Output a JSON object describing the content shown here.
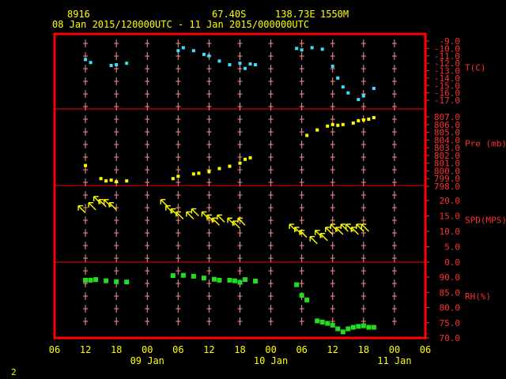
{
  "header": {
    "station_id": "8916",
    "lat": "67.40S",
    "lon": "138.73E",
    "elevation": "1550M",
    "period": "08 Jan 2015/120000UTC - 11 Jan 2015/000000UTC"
  },
  "footer": {
    "page_number": "2"
  },
  "colors": {
    "frame": "#ff0000",
    "grid_marks": "#ff9090",
    "header_text": "#ffff00",
    "axis_text": "#ffff00",
    "right_labels": "#ff3030",
    "temperature": "#38e0ff",
    "pressure": "#ffff00",
    "wind": "#ffff00",
    "humidity": "#22dd22"
  },
  "chart_data": {
    "type": "scatter",
    "x": {
      "tick_labels": [
        "06",
        "12",
        "18",
        "00",
        "06",
        "12",
        "18",
        "00",
        "06",
        "12",
        "18",
        "00",
        "06"
      ],
      "day_labels": [
        "09 Jan",
        "10 Jan",
        "11 Jan"
      ],
      "range_hours_utc": [
        "2015-01-08T06:00",
        "2015-01-11T06:00"
      ]
    },
    "panels": [
      {
        "name": "T(C)",
        "ticks": [
          "-9.0",
          "-10.0",
          "-11.0",
          "-12.0",
          "-13.0",
          "-14.0",
          "-15.0",
          "-16.0",
          "-17.0"
        ],
        "ylim": [
          -17,
          -9
        ],
        "points": [
          {
            "t": "2015-01-08T12:00",
            "v": -11.5
          },
          {
            "t": "2015-01-08T13:00",
            "v": -11.9
          },
          {
            "t": "2015-01-08T17:00",
            "v": -12.3
          },
          {
            "t": "2015-01-08T18:00",
            "v": -12.2
          },
          {
            "t": "2015-01-08T20:00",
            "v": -12.0
          },
          {
            "t": "2015-01-09T06:00",
            "v": -10.3
          },
          {
            "t": "2015-01-09T07:00",
            "v": -9.9
          },
          {
            "t": "2015-01-09T09:00",
            "v": -10.3
          },
          {
            "t": "2015-01-09T11:00",
            "v": -10.8
          },
          {
            "t": "2015-01-09T12:00",
            "v": -11.0
          },
          {
            "t": "2015-01-09T14:00",
            "v": -11.7
          },
          {
            "t": "2015-01-09T16:00",
            "v": -12.2
          },
          {
            "t": "2015-01-09T18:00",
            "v": -12.0
          },
          {
            "t": "2015-01-09T19:00",
            "v": -12.7
          },
          {
            "t": "2015-01-09T20:00",
            "v": -12.1
          },
          {
            "t": "2015-01-09T21:00",
            "v": -12.2
          },
          {
            "t": "2015-01-10T05:00",
            "v": -10.0
          },
          {
            "t": "2015-01-10T06:00",
            "v": -10.2
          },
          {
            "t": "2015-01-10T08:00",
            "v": -9.9
          },
          {
            "t": "2015-01-10T10:00",
            "v": -10.1
          },
          {
            "t": "2015-01-10T12:00",
            "v": -12.4
          },
          {
            "t": "2015-01-10T13:00",
            "v": -14.0
          },
          {
            "t": "2015-01-10T14:00",
            "v": -15.2
          },
          {
            "t": "2015-01-10T15:00",
            "v": -16.0
          },
          {
            "t": "2015-01-10T17:00",
            "v": -16.9
          },
          {
            "t": "2015-01-10T18:00",
            "v": -16.4
          },
          {
            "t": "2015-01-10T20:00",
            "v": -15.4
          }
        ]
      },
      {
        "name": "Pre (mb)",
        "ticks": [
          "807.0",
          "806.0",
          "805.0",
          "804.0",
          "803.0",
          "802.0",
          "801.0",
          "800.0",
          "799.0",
          "798.0"
        ],
        "ylim": [
          798,
          807.5
        ],
        "points": [
          {
            "t": "2015-01-08T12:00",
            "v": 800.7
          },
          {
            "t": "2015-01-08T15:00",
            "v": 799.0
          },
          {
            "t": "2015-01-08T16:00",
            "v": 798.7
          },
          {
            "t": "2015-01-08T17:00",
            "v": 798.8
          },
          {
            "t": "2015-01-08T18:00",
            "v": 798.6
          },
          {
            "t": "2015-01-08T20:00",
            "v": 798.7
          },
          {
            "t": "2015-01-09T05:00",
            "v": 799.0
          },
          {
            "t": "2015-01-09T06:00",
            "v": 799.3
          },
          {
            "t": "2015-01-09T09:00",
            "v": 799.6
          },
          {
            "t": "2015-01-09T10:00",
            "v": 799.7
          },
          {
            "t": "2015-01-09T12:00",
            "v": 799.9
          },
          {
            "t": "2015-01-09T14:00",
            "v": 800.3
          },
          {
            "t": "2015-01-09T16:00",
            "v": 800.6
          },
          {
            "t": "2015-01-09T18:00",
            "v": 801.0
          },
          {
            "t": "2015-01-09T19:00",
            "v": 801.5
          },
          {
            "t": "2015-01-09T20:00",
            "v": 801.7
          },
          {
            "t": "2015-01-10T07:00",
            "v": 804.6
          },
          {
            "t": "2015-01-10T09:00",
            "v": 805.3
          },
          {
            "t": "2015-01-10T11:00",
            "v": 805.8
          },
          {
            "t": "2015-01-10T12:00",
            "v": 806.0
          },
          {
            "t": "2015-01-10T13:00",
            "v": 805.9
          },
          {
            "t": "2015-01-10T14:00",
            "v": 806.0
          },
          {
            "t": "2015-01-10T16:00",
            "v": 806.2
          },
          {
            "t": "2015-01-10T17:00",
            "v": 806.5
          },
          {
            "t": "2015-01-10T18:00",
            "v": 806.6
          },
          {
            "t": "2015-01-10T19:00",
            "v": 806.7
          },
          {
            "t": "2015-01-10T20:00",
            "v": 806.9
          }
        ]
      },
      {
        "name": "SPD(MPS)",
        "ticks": [
          "20.0",
          "15.0",
          "10.0",
          "5.0",
          "0.0"
        ],
        "ylim": [
          0,
          20
        ],
        "glyph": "arrow",
        "points": [
          {
            "t": "2015-01-08T12:00",
            "v": 16
          },
          {
            "t": "2015-01-08T14:00",
            "v": 17
          },
          {
            "t": "2015-01-08T15:00",
            "v": 19
          },
          {
            "t": "2015-01-08T16:00",
            "v": 18
          },
          {
            "t": "2015-01-08T17:00",
            "v": 18
          },
          {
            "t": "2015-01-08T18:00",
            "v": 17
          },
          {
            "t": "2015-01-09T04:00",
            "v": 18
          },
          {
            "t": "2015-01-09T05:00",
            "v": 16
          },
          {
            "t": "2015-01-09T06:00",
            "v": 15
          },
          {
            "t": "2015-01-09T07:00",
            "v": 14
          },
          {
            "t": "2015-01-09T09:00",
            "v": 14
          },
          {
            "t": "2015-01-09T10:00",
            "v": 15
          },
          {
            "t": "2015-01-09T12:00",
            "v": 14
          },
          {
            "t": "2015-01-09T13:00",
            "v": 13
          },
          {
            "t": "2015-01-09T14:00",
            "v": 12
          },
          {
            "t": "2015-01-09T15:00",
            "v": 13
          },
          {
            "t": "2015-01-09T17:00",
            "v": 12
          },
          {
            "t": "2015-01-09T18:00",
            "v": 11
          },
          {
            "t": "2015-01-09T19:00",
            "v": 12
          },
          {
            "t": "2015-01-10T05:00",
            "v": 10
          },
          {
            "t": "2015-01-10T06:00",
            "v": 9
          },
          {
            "t": "2015-01-10T07:00",
            "v": 8
          },
          {
            "t": "2015-01-10T09:00",
            "v": 6
          },
          {
            "t": "2015-01-10T10:00",
            "v": 8
          },
          {
            "t": "2015-01-10T11:00",
            "v": 7
          },
          {
            "t": "2015-01-10T12:00",
            "v": 9
          },
          {
            "t": "2015-01-10T13:00",
            "v": 10
          },
          {
            "t": "2015-01-10T14:00",
            "v": 9
          },
          {
            "t": "2015-01-10T15:00",
            "v": 10
          },
          {
            "t": "2015-01-10T16:00",
            "v": 10
          },
          {
            "t": "2015-01-10T17:00",
            "v": 9
          },
          {
            "t": "2015-01-10T18:00",
            "v": 10
          },
          {
            "t": "2015-01-10T19:00",
            "v": 10
          }
        ]
      },
      {
        "name": "RH(%)",
        "ticks": [
          "90.0",
          "85.0",
          "80.0",
          "75.0",
          "70.0"
        ],
        "ylim": [
          70,
          94
        ],
        "points": [
          {
            "t": "2015-01-08T12:00",
            "v": 89.0
          },
          {
            "t": "2015-01-08T13:00",
            "v": 89.0
          },
          {
            "t": "2015-01-08T14:00",
            "v": 89.2
          },
          {
            "t": "2015-01-08T16:00",
            "v": 88.8
          },
          {
            "t": "2015-01-08T18:00",
            "v": 88.5
          },
          {
            "t": "2015-01-08T20:00",
            "v": 88.4
          },
          {
            "t": "2015-01-09T05:00",
            "v": 90.5
          },
          {
            "t": "2015-01-09T07:00",
            "v": 90.6
          },
          {
            "t": "2015-01-09T09:00",
            "v": 90.3
          },
          {
            "t": "2015-01-09T11:00",
            "v": 89.7
          },
          {
            "t": "2015-01-09T13:00",
            "v": 89.3
          },
          {
            "t": "2015-01-09T14:00",
            "v": 89.0
          },
          {
            "t": "2015-01-09T16:00",
            "v": 89.0
          },
          {
            "t": "2015-01-09T17:00",
            "v": 88.8
          },
          {
            "t": "2015-01-09T18:00",
            "v": 88.3
          },
          {
            "t": "2015-01-09T19:00",
            "v": 89.2
          },
          {
            "t": "2015-01-09T21:00",
            "v": 88.7
          },
          {
            "t": "2015-01-10T05:00",
            "v": 87.5
          },
          {
            "t": "2015-01-10T06:00",
            "v": 84.0
          },
          {
            "t": "2015-01-10T07:00",
            "v": 82.5
          },
          {
            "t": "2015-01-10T09:00",
            "v": 75.6
          },
          {
            "t": "2015-01-10T10:00",
            "v": 75.2
          },
          {
            "t": "2015-01-10T11:00",
            "v": 74.8
          },
          {
            "t": "2015-01-10T12:00",
            "v": 74.2
          },
          {
            "t": "2015-01-10T13:00",
            "v": 73.0
          },
          {
            "t": "2015-01-10T14:00",
            "v": 72.0
          },
          {
            "t": "2015-01-10T15:00",
            "v": 73.0
          },
          {
            "t": "2015-01-10T16:00",
            "v": 73.5
          },
          {
            "t": "2015-01-10T17:00",
            "v": 73.8
          },
          {
            "t": "2015-01-10T18:00",
            "v": 74.0
          },
          {
            "t": "2015-01-10T19:00",
            "v": 73.5
          },
          {
            "t": "2015-01-10T20:00",
            "v": 73.5
          }
        ]
      }
    ]
  }
}
